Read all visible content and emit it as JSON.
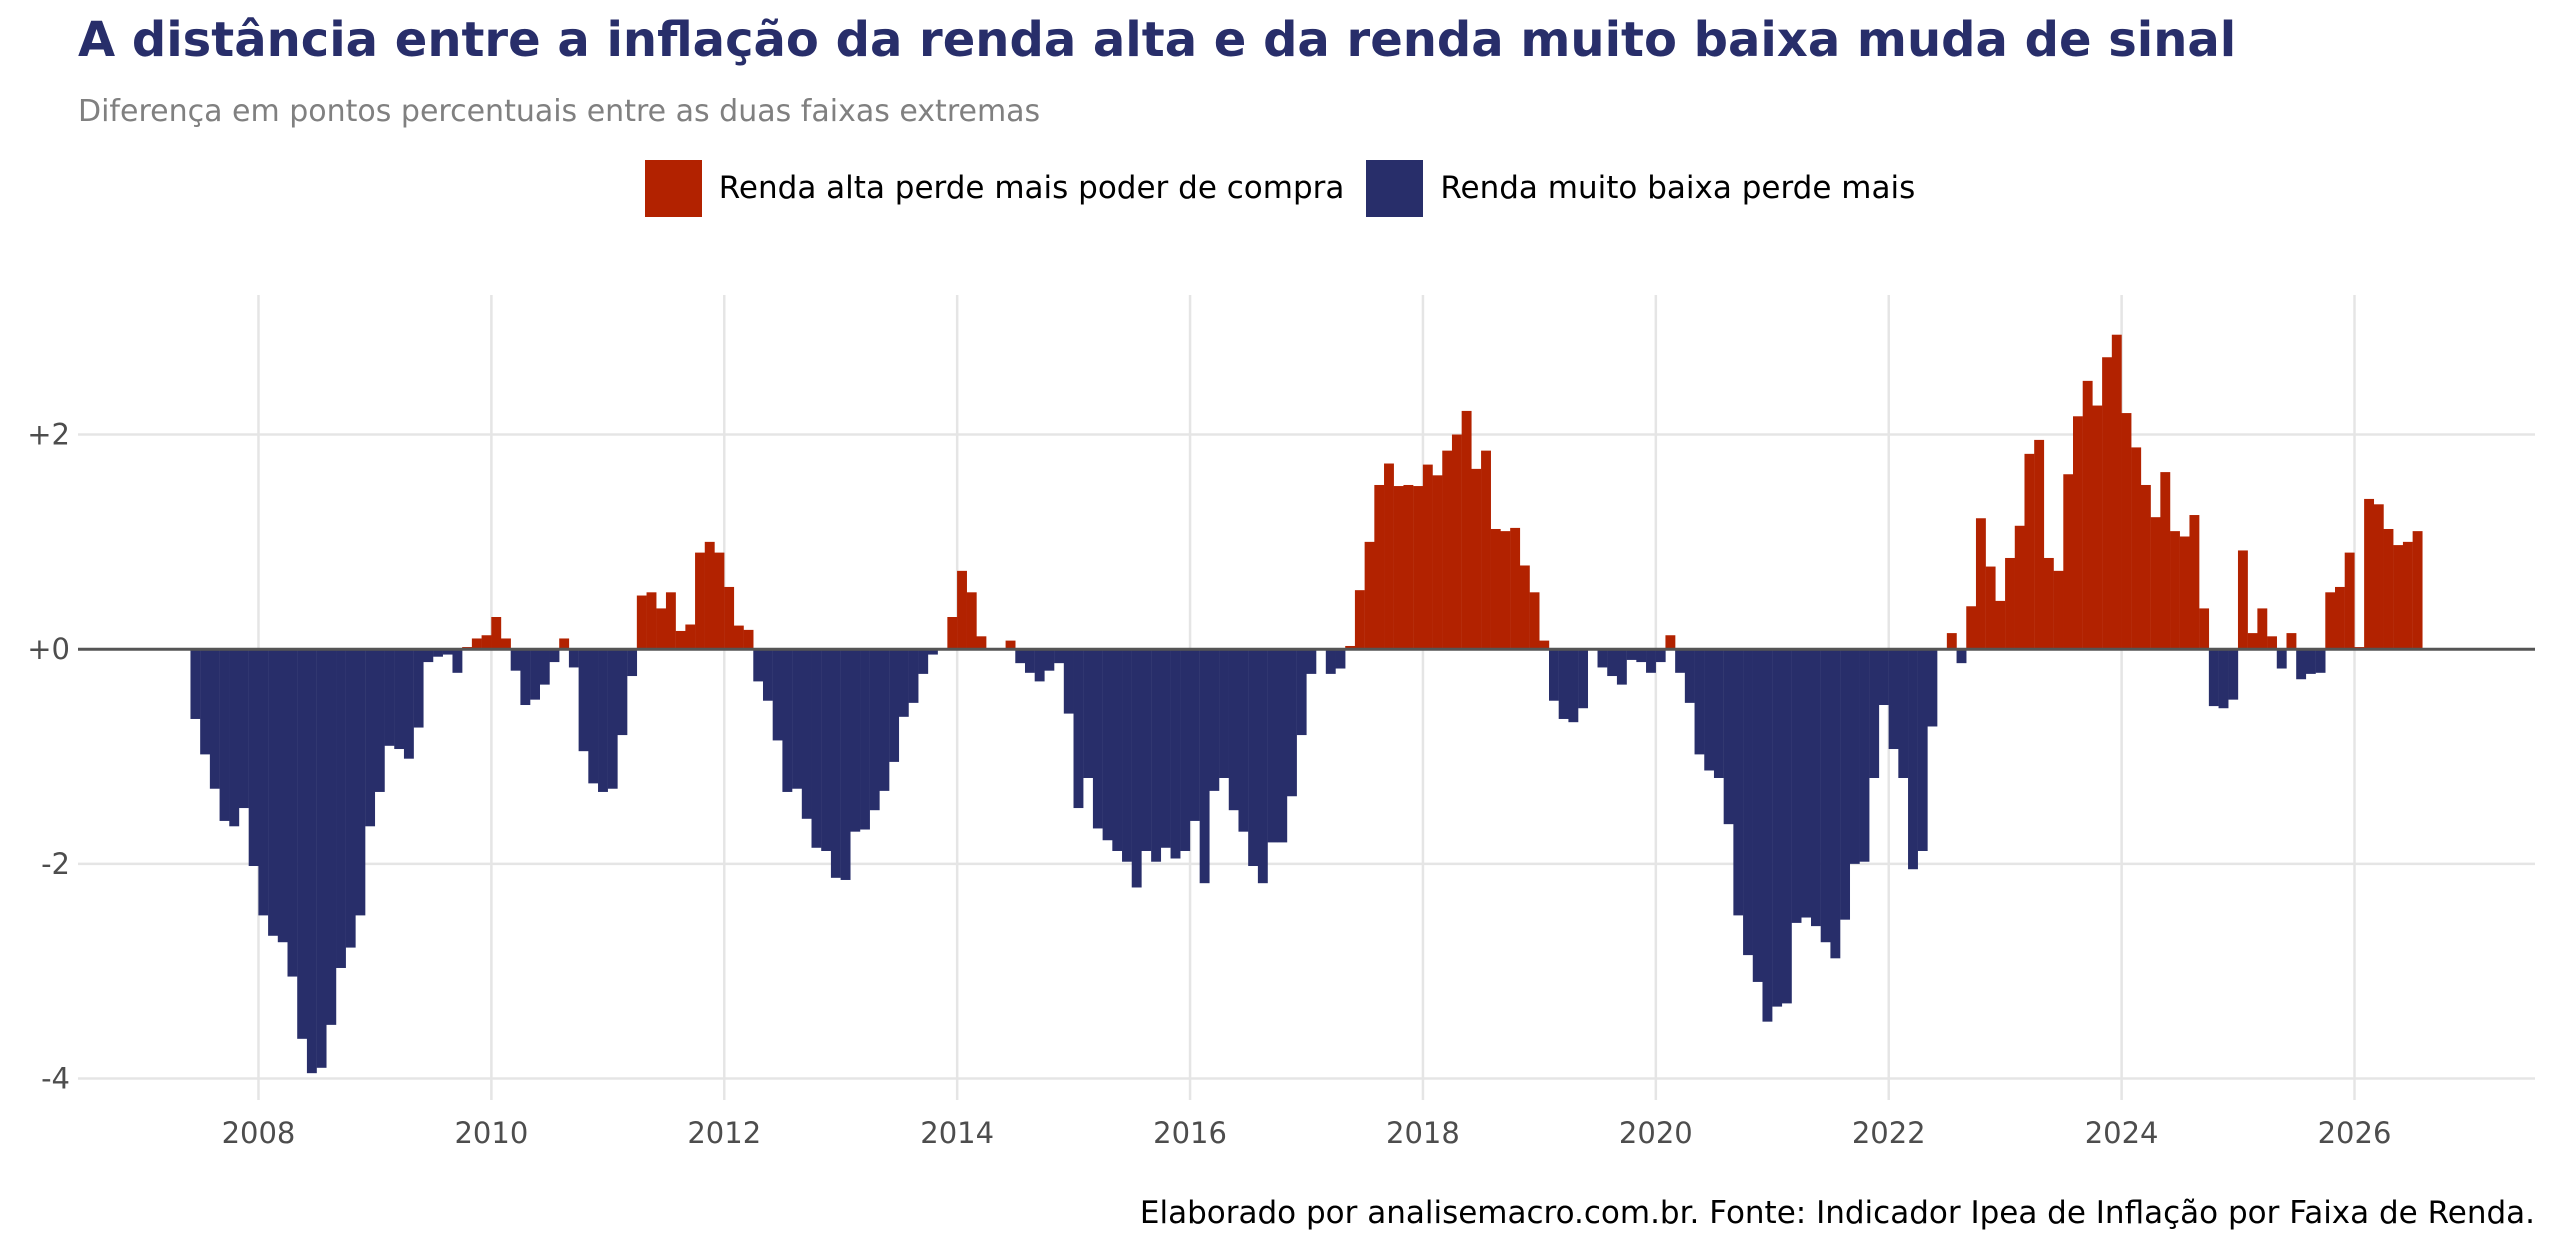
{
  "chart_data": {
    "type": "bar",
    "title": "A distância entre a inflação da renda alta e da renda muito baixa muda de sinal",
    "subtitle": "Diferença em pontos percentuais entre as duas faixas extremas",
    "caption": "Elaborado por analisemacro.com.br. Fonte: Indicador Ipea de Inflação por Faixa de Renda.",
    "xlabel": "",
    "ylabel": "",
    "x_start": "2007-06",
    "x_end": "2026-07",
    "frequency": "monthly",
    "xlim": [
      2006.45,
      2027.55
    ],
    "ylim": [
      -4.2,
      3.3
    ],
    "x_ticks": [
      2008,
      2010,
      2012,
      2014,
      2016,
      2018,
      2020,
      2022,
      2024,
      2026
    ],
    "x_tick_labels": [
      "2008",
      "2010",
      "2012",
      "2014",
      "2016",
      "2018",
      "2020",
      "2022",
      "2024",
      "2026"
    ],
    "y_ticks": [
      -4,
      -2,
      0,
      2
    ],
    "y_tick_labels": [
      "-4",
      "-2",
      "+0",
      "+2"
    ],
    "grid": true,
    "zero_line": true,
    "legend_position": "top-center",
    "colors": {
      "positive": "#b22200",
      "negative": "#282e6a",
      "title": "#282e6a"
    },
    "series": [
      {
        "name": "Renda alta perde mais poder de compra",
        "color": "#b22200",
        "sign": "positive"
      },
      {
        "name": "Renda muito baixa perde mais",
        "color": "#282e6a",
        "sign": "negative"
      }
    ],
    "values": [
      -0.65,
      -0.98,
      -1.3,
      -1.6,
      -1.65,
      -1.48,
      -2.02,
      -2.48,
      -2.67,
      -2.73,
      -3.05,
      -3.63,
      -3.95,
      -3.9,
      -3.5,
      -2.97,
      -2.78,
      -2.48,
      -1.65,
      -1.33,
      -0.9,
      -0.93,
      -1.02,
      -0.73,
      -0.12,
      -0.07,
      -0.05,
      -0.22,
      0.02,
      0.1,
      0.13,
      0.3,
      0.1,
      -0.2,
      -0.52,
      -0.47,
      -0.33,
      -0.12,
      0.1,
      -0.17,
      -0.95,
      -1.25,
      -1.33,
      -1.3,
      -0.8,
      -0.25,
      0.5,
      0.53,
      0.38,
      0.53,
      0.17,
      0.23,
      0.9,
      1.0,
      0.9,
      0.58,
      0.22,
      0.18,
      -0.3,
      -0.48,
      -0.85,
      -1.33,
      -1.3,
      -1.58,
      -1.85,
      -1.88,
      -2.13,
      -2.15,
      -1.7,
      -1.68,
      -1.5,
      -1.32,
      -1.05,
      -0.63,
      -0.5,
      -0.23,
      -0.05,
      0.0,
      0.3,
      0.73,
      0.53,
      0.12,
      0.0,
      0.0,
      0.08,
      -0.13,
      -0.22,
      -0.3,
      -0.2,
      -0.13,
      -0.6,
      -1.48,
      -1.2,
      -1.67,
      -1.78,
      -1.88,
      -1.98,
      -2.22,
      -1.88,
      -1.98,
      -1.85,
      -1.95,
      -1.88,
      -1.6,
      -2.18,
      -1.32,
      -1.2,
      -1.5,
      -1.7,
      -2.02,
      -2.18,
      -1.8,
      -1.8,
      -1.37,
      -0.8,
      -0.23,
      0.0,
      -0.23,
      -0.18,
      0.03,
      0.55,
      1.0,
      1.53,
      1.73,
      1.52,
      1.53,
      1.52,
      1.72,
      1.62,
      1.85,
      2.0,
      2.22,
      1.68,
      1.85,
      1.12,
      1.1,
      1.13,
      0.78,
      0.53,
      0.08,
      -0.48,
      -0.65,
      -0.68,
      -0.55,
      0.0,
      -0.17,
      -0.25,
      -0.33,
      -0.1,
      -0.12,
      -0.22,
      -0.12,
      0.13,
      -0.22,
      -0.5,
      -0.98,
      -1.13,
      -1.2,
      -1.63,
      -2.48,
      -2.85,
      -3.1,
      -3.47,
      -3.33,
      -3.3,
      -2.55,
      -2.5,
      -2.58,
      -2.73,
      -2.88,
      -2.52,
      -2.0,
      -1.98,
      -1.2,
      -0.52,
      -0.93,
      -1.2,
      -2.05,
      -1.88,
      -0.72,
      0.0,
      0.15,
      -0.13,
      0.4,
      1.22,
      0.77,
      0.45,
      0.85,
      1.15,
      1.82,
      1.95,
      0.85,
      0.73,
      1.63,
      2.17,
      2.5,
      2.27,
      2.72,
      2.93,
      2.2,
      1.88,
      1.53,
      1.23,
      1.65,
      1.1,
      1.05,
      1.25,
      0.38,
      -0.53,
      -0.55,
      -0.47,
      0.92,
      0.15,
      0.38,
      0.12,
      -0.18,
      0.15,
      -0.28,
      -0.23,
      -0.22,
      0.53,
      0.58,
      0.9,
      0.02,
      1.4,
      1.35,
      1.12,
      0.97,
      1.0,
      1.1
    ]
  }
}
